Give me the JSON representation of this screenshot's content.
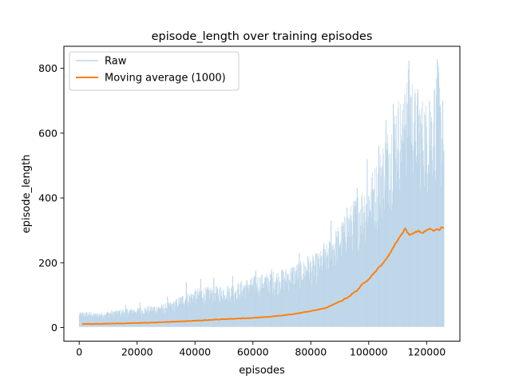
{
  "chart_data": {
    "type": "line",
    "title": "episode_length over training episodes",
    "xlabel": "episodes",
    "ylabel": "episode_length",
    "xlim": [
      -5300,
      131500
    ],
    "ylim": [
      -42,
      868
    ],
    "xticks": [
      0,
      20000,
      40000,
      60000,
      80000,
      100000,
      120000
    ],
    "yticks": [
      0,
      200,
      400,
      600,
      800
    ],
    "grid": false,
    "legend": {
      "location": "upper-left",
      "entries": [
        "Raw",
        "Moving average (1000)"
      ]
    },
    "series": [
      {
        "name": "Raw",
        "color": "#bcd5e8",
        "render": "dense-band",
        "x_end": 125950,
        "min_values": [
          2,
          1
        ],
        "upper_envelope": [
          [
            0,
            48
          ],
          [
            3000,
            50
          ],
          [
            6000,
            46
          ],
          [
            10000,
            52
          ],
          [
            15000,
            58
          ],
          [
            20000,
            62
          ],
          [
            25000,
            68
          ],
          [
            30000,
            75
          ],
          [
            33000,
            85
          ],
          [
            35000,
            100
          ],
          [
            38000,
            110
          ],
          [
            40000,
            120
          ],
          [
            45000,
            128
          ],
          [
            50000,
            130
          ],
          [
            55000,
            140
          ],
          [
            60000,
            160
          ],
          [
            65000,
            170
          ],
          [
            70000,
            180
          ],
          [
            75000,
            200
          ],
          [
            80000,
            220
          ],
          [
            85000,
            250
          ],
          [
            88000,
            300
          ],
          [
            90000,
            320
          ],
          [
            95000,
            400
          ],
          [
            100000,
            460
          ],
          [
            103000,
            520
          ],
          [
            105000,
            580
          ],
          [
            108000,
            650
          ],
          [
            110000,
            720
          ],
          [
            112000,
            700
          ],
          [
            114000,
            825
          ],
          [
            116000,
            740
          ],
          [
            118000,
            720
          ],
          [
            120000,
            700
          ],
          [
            122000,
            725
          ],
          [
            124000,
            828
          ],
          [
            125000,
            700
          ],
          [
            125950,
            640
          ]
        ],
        "spikes": [
          [
            16000,
            70
          ],
          [
            21000,
            78
          ],
          [
            30500,
            95
          ],
          [
            37000,
            140
          ],
          [
            42000,
            150
          ],
          [
            46500,
            155
          ],
          [
            53000,
            160
          ],
          [
            61000,
            175
          ],
          [
            66500,
            180
          ],
          [
            70000,
            180
          ],
          [
            76000,
            230
          ],
          [
            79000,
            220
          ],
          [
            84500,
            260
          ],
          [
            87000,
            330
          ],
          [
            92500,
            370
          ],
          [
            96000,
            430
          ],
          [
            99500,
            520
          ],
          [
            103500,
            560
          ],
          [
            106000,
            640
          ],
          [
            108500,
            690
          ],
          [
            112500,
            720
          ],
          [
            113900,
            824
          ],
          [
            117000,
            735
          ],
          [
            121000,
            700
          ],
          [
            123700,
            828
          ],
          [
            125600,
            700
          ]
        ]
      },
      {
        "name": "Moving average (1000)",
        "color": "#ff7f0e",
        "points": [
          [
            1000,
            11
          ],
          [
            5000,
            11
          ],
          [
            10000,
            12
          ],
          [
            20000,
            14
          ],
          [
            30000,
            17
          ],
          [
            40000,
            21
          ],
          [
            50000,
            26
          ],
          [
            60000,
            30
          ],
          [
            65000,
            33
          ],
          [
            70000,
            37
          ],
          [
            75000,
            43
          ],
          [
            80000,
            51
          ],
          [
            85000,
            60
          ],
          [
            90000,
            80
          ],
          [
            93000,
            95
          ],
          [
            96000,
            115
          ],
          [
            98000,
            135
          ],
          [
            100000,
            150
          ],
          [
            102000,
            170
          ],
          [
            104000,
            190
          ],
          [
            106000,
            210
          ],
          [
            108000,
            240
          ],
          [
            110000,
            270
          ],
          [
            111500,
            290
          ],
          [
            112600,
            306
          ],
          [
            113300,
            295
          ],
          [
            114000,
            285
          ],
          [
            115500,
            292
          ],
          [
            117000,
            298
          ],
          [
            118500,
            292
          ],
          [
            120000,
            300
          ],
          [
            121500,
            305
          ],
          [
            122500,
            298
          ],
          [
            123500,
            304
          ],
          [
            124500,
            300
          ],
          [
            125200,
            310
          ],
          [
            125950,
            308
          ]
        ]
      }
    ]
  }
}
